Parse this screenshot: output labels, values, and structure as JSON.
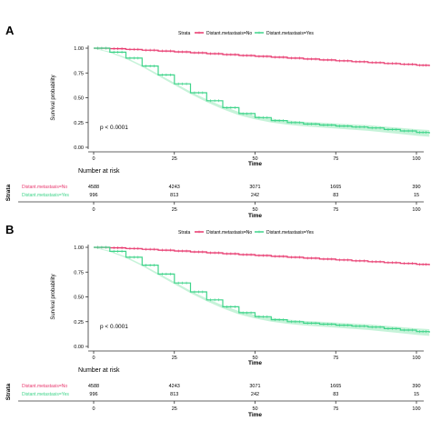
{
  "panels": [
    {
      "letter": "A",
      "legend_title": "Strata",
      "pvalue": "p < 0.0001",
      "risk_title": "Number at risk",
      "strata_label": "Strata"
    },
    {
      "letter": "B",
      "legend_title": "Strata",
      "pvalue": "p < 0.0001",
      "risk_title": "Number at risk",
      "strata_label": "Strata"
    }
  ],
  "colors": {
    "no": "#e8386e",
    "yes": "#3fd48a",
    "yes_ci": "#b8f0cf",
    "no_ci": "#f7c6d5",
    "axis": "#333333",
    "label": "#000000"
  },
  "chart_data": [
    {
      "type": "line",
      "chart_kind": "kaplan-meier survival curve",
      "xlabel": "Time",
      "ylabel": "Survival probability",
      "xlim": [
        0,
        100
      ],
      "ylim": [
        0,
        1
      ],
      "x_ticks": [
        0,
        25,
        50,
        75,
        100
      ],
      "y_ticks": [
        0.0,
        0.25,
        0.5,
        0.75,
        1.0
      ],
      "y_tick_labels": [
        "0.00",
        "0.25",
        "0.50",
        "0.75",
        "1.00"
      ],
      "legend_position": "top",
      "series": [
        {
          "name": "Distant.metastasis=No",
          "x": [
            0,
            5,
            10,
            15,
            20,
            25,
            30,
            35,
            40,
            45,
            50,
            55,
            60,
            65,
            70,
            75,
            80,
            85,
            90,
            95,
            100,
            104
          ],
          "y": [
            1.0,
            0.995,
            0.988,
            0.98,
            0.972,
            0.963,
            0.954,
            0.945,
            0.936,
            0.927,
            0.918,
            0.909,
            0.9,
            0.891,
            0.882,
            0.873,
            0.864,
            0.855,
            0.846,
            0.838,
            0.828,
            0.82
          ]
        },
        {
          "name": "Distant.metastasis=Yes",
          "x": [
            0,
            5,
            10,
            15,
            20,
            25,
            30,
            35,
            40,
            45,
            50,
            55,
            60,
            65,
            70,
            75,
            80,
            85,
            90,
            95,
            100,
            104
          ],
          "y": [
            1.0,
            0.96,
            0.9,
            0.82,
            0.73,
            0.64,
            0.55,
            0.47,
            0.4,
            0.34,
            0.3,
            0.27,
            0.25,
            0.235,
            0.225,
            0.215,
            0.205,
            0.195,
            0.18,
            0.165,
            0.15,
            0.14
          ]
        }
      ],
      "risk_table": {
        "times": [
          0,
          25,
          50,
          75,
          100
        ],
        "rows": [
          {
            "label": "Distant.metastasis=No",
            "counts": [
              "4588",
              "4243",
              "3071",
              "1665",
              "390"
            ]
          },
          {
            "label": "Distant.metastasis=Yes",
            "counts": [
              "996",
              "813",
              "242",
              "83",
              "15"
            ]
          }
        ]
      }
    },
    {
      "type": "line",
      "chart_kind": "kaplan-meier survival curve",
      "xlabel": "Time",
      "ylabel": "Survival probability",
      "xlim": [
        0,
        100
      ],
      "ylim": [
        0,
        1
      ],
      "x_ticks": [
        0,
        25,
        50,
        75,
        100
      ],
      "y_ticks": [
        0.0,
        0.25,
        0.5,
        0.75,
        1.0
      ],
      "y_tick_labels": [
        "0.00",
        "0.25",
        "0.50",
        "0.75",
        "1.00"
      ],
      "legend_position": "top",
      "series": [
        {
          "name": "Distant.metastasis=No",
          "x": [
            0,
            5,
            10,
            15,
            20,
            25,
            30,
            35,
            40,
            45,
            50,
            55,
            60,
            65,
            70,
            75,
            80,
            85,
            90,
            95,
            100,
            104
          ],
          "y": [
            1.0,
            0.995,
            0.988,
            0.98,
            0.972,
            0.963,
            0.954,
            0.945,
            0.936,
            0.927,
            0.918,
            0.909,
            0.9,
            0.891,
            0.882,
            0.873,
            0.864,
            0.855,
            0.846,
            0.838,
            0.828,
            0.82
          ]
        },
        {
          "name": "Distant.metastasis=Yes",
          "x": [
            0,
            5,
            10,
            15,
            20,
            25,
            30,
            35,
            40,
            45,
            50,
            55,
            60,
            65,
            70,
            75,
            80,
            85,
            90,
            95,
            100,
            104
          ],
          "y": [
            1.0,
            0.96,
            0.9,
            0.82,
            0.73,
            0.64,
            0.55,
            0.47,
            0.4,
            0.34,
            0.3,
            0.27,
            0.25,
            0.235,
            0.225,
            0.215,
            0.205,
            0.195,
            0.18,
            0.165,
            0.15,
            0.14
          ]
        }
      ],
      "risk_table": {
        "times": [
          0,
          25,
          50,
          75,
          100
        ],
        "rows": [
          {
            "label": "Distant.metastasis=No",
            "counts": [
              "4588",
              "4243",
              "3071",
              "1665",
              "390"
            ]
          },
          {
            "label": "Distant.metastasis=Yes",
            "counts": [
              "996",
              "813",
              "242",
              "83",
              "15"
            ]
          }
        ]
      }
    }
  ]
}
